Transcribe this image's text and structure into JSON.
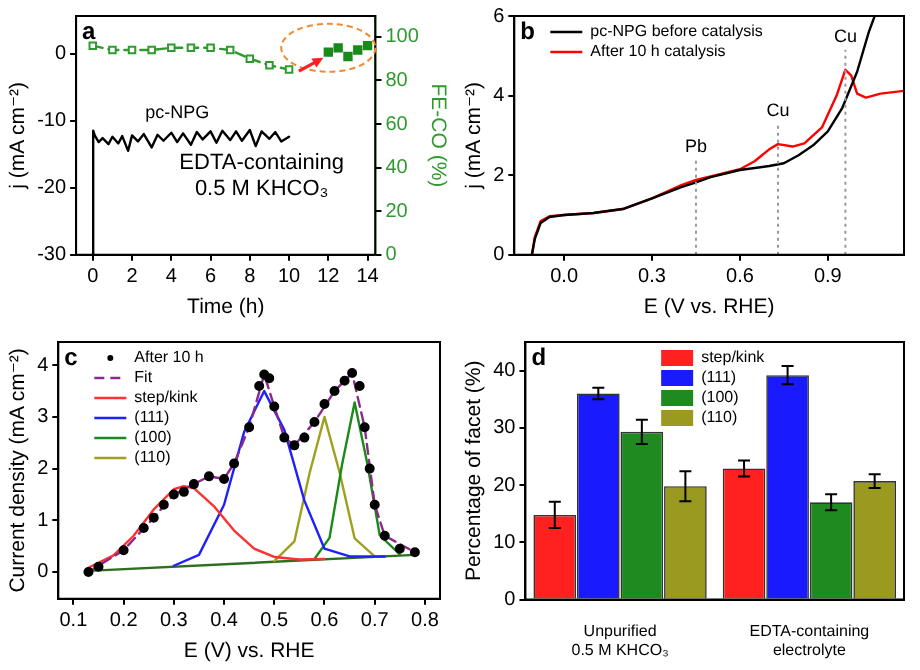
{
  "chart_data": [
    {
      "type": "line",
      "title": "a",
      "xlabel": "Time (h)",
      "ylabel": "j (mA cm⁻²)",
      "y2label": "FE-CO (%)",
      "xlim": [
        -0.85,
        14.4
      ],
      "xticks": [
        0,
        2,
        4,
        6,
        8,
        10,
        12,
        14
      ],
      "ylim": [
        -30,
        5.6
      ],
      "yticks": [
        -30,
        -20,
        -10,
        0
      ],
      "y2lim": [
        0,
        109.6
      ],
      "y2ticks": [
        0,
        20,
        40,
        60,
        80,
        100
      ],
      "series": [
        {
          "type": "line",
          "name": "pc-NPG",
          "color": "#000000",
          "x": [
            0,
            0.02,
            0.1,
            0.3,
            0.5,
            0.8,
            1.0,
            1.3,
            1.5,
            1.8,
            2.0,
            2.3,
            2.6,
            3.0,
            3.3,
            3.6,
            4.0,
            4.3,
            4.6,
            5.0,
            5.3,
            5.6,
            6.0,
            6.3,
            6.6,
            7.0,
            7.3,
            7.6,
            8.0,
            8.3,
            8.6,
            9.0,
            9.3,
            9.6,
            10.0
          ],
          "values": [
            -30,
            -11.5,
            -12.2,
            -13.2,
            -12.6,
            -13.5,
            -12.4,
            -13.4,
            -12.3,
            -14.5,
            -12.2,
            -13.1,
            -12.0,
            -14.0,
            -12.1,
            -13.0,
            -11.8,
            -13.2,
            -11.9,
            -13.6,
            -11.7,
            -12.8,
            -11.6,
            -13.3,
            -11.5,
            -12.9,
            -11.6,
            -13.0,
            -11.4,
            -13.8,
            -11.6,
            -12.7,
            -11.7,
            -13.1,
            -12.4
          ]
        },
        {
          "type": "line",
          "axis": "y2",
          "color": "#2f9a2f",
          "marker": "square",
          "line_style": "dashed",
          "x": [
            0,
            1,
            2,
            3,
            4,
            5,
            6,
            7,
            8,
            9,
            10
          ],
          "values": [
            96,
            94,
            94,
            94,
            95,
            95,
            95,
            94,
            90,
            87,
            85
          ]
        },
        {
          "type": "scatter",
          "axis": "y2",
          "color": "#1a8a1a",
          "marker": "square",
          "x": [
            12,
            12.5,
            13,
            13.5,
            14
          ],
          "values": [
            93,
            95,
            91,
            94,
            96
          ]
        }
      ],
      "annotations": [
        "EDTA-containing\n0.5 M KHCO₃"
      ]
    },
    {
      "type": "line",
      "title": "b",
      "xlabel": "E (V vs. RHE)",
      "ylabel": "j (mA cm⁻²)",
      "xlim": [
        -0.17,
        1.16
      ],
      "xticks": [
        {
          "value": 0,
          "label": "0.0"
        },
        {
          "value": 0.3,
          "label": "0.3"
        },
        {
          "value": 0.6,
          "label": "0.6"
        },
        {
          "value": 0.9,
          "label": "0.9"
        }
      ],
      "ylim": [
        0,
        6
      ],
      "yticks": [
        0,
        2,
        4,
        6
      ],
      "legend": "top left",
      "series": [
        {
          "name": "pc-NPG before catalysis",
          "color": "#000000",
          "x": [
            -0.11,
            -0.1,
            -0.08,
            -0.05,
            0,
            0.1,
            0.2,
            0.3,
            0.4,
            0.45,
            0.5,
            0.6,
            0.7,
            0.75,
            0.8,
            0.85,
            0.9,
            0.95,
            1.0,
            1.04,
            1.06
          ],
          "values": [
            0,
            0.4,
            0.8,
            0.95,
            1.0,
            1.05,
            1.15,
            1.42,
            1.7,
            1.82,
            1.95,
            2.13,
            2.23,
            2.3,
            2.5,
            2.75,
            3.1,
            3.7,
            4.6,
            5.6,
            6.0
          ]
        },
        {
          "name": "After 10 h catalysis",
          "color": "#ff0000",
          "x": [
            -0.11,
            -0.1,
            -0.08,
            -0.05,
            0,
            0.1,
            0.2,
            0.3,
            0.4,
            0.45,
            0.5,
            0.6,
            0.65,
            0.7,
            0.73,
            0.78,
            0.82,
            0.88,
            0.93,
            0.96,
            0.98,
            1.0,
            1.03,
            1.08,
            1.16
          ],
          "values": [
            0,
            0.45,
            0.85,
            0.97,
            1.0,
            1.05,
            1.15,
            1.42,
            1.75,
            1.88,
            1.97,
            2.15,
            2.35,
            2.65,
            2.78,
            2.72,
            2.8,
            3.2,
            4.0,
            4.65,
            4.5,
            4.05,
            3.95,
            4.05,
            4.12
          ]
        }
      ],
      "ref_lines": [
        {
          "axis": "x",
          "value": 0.45,
          "label": "Pb",
          "color": "#999999",
          "line_style": "dotted"
        },
        {
          "axis": "x",
          "value": 0.73,
          "label": "Cu",
          "color": "#999999",
          "line_style": "dotted"
        },
        {
          "axis": "x",
          "value": 0.96,
          "label": "Cu",
          "color": "#999999",
          "line_style": "dotted"
        }
      ]
    },
    {
      "type": "line",
      "title": "c",
      "xlabel": "E (V) vs. RHE",
      "ylabel": "Current density (mA cm⁻²)",
      "xlim": [
        0.07,
        0.83
      ],
      "xticks": [
        0.1,
        0.2,
        0.3,
        0.4,
        0.5,
        0.6,
        0.7,
        0.8
      ],
      "ylim": [
        -0.52,
        4.45
      ],
      "yticks": [
        0,
        1,
        2,
        3,
        4
      ],
      "legend": "top left",
      "series": [
        {
          "type": "scatter",
          "name": "After 10 h",
          "color": "#000000",
          "marker": "circle",
          "x": [
            0.13,
            0.15,
            0.2,
            0.24,
            0.26,
            0.28,
            0.3,
            0.32,
            0.34,
            0.37,
            0.4,
            0.42,
            0.45,
            0.47,
            0.48,
            0.49,
            0.5,
            0.52,
            0.54,
            0.56,
            0.58,
            0.6,
            0.62,
            0.64,
            0.655,
            0.67,
            0.68,
            0.69,
            0.7,
            0.72,
            0.75,
            0.78
          ],
          "values": [
            0,
            0.1,
            0.42,
            0.85,
            1.05,
            1.3,
            1.5,
            1.55,
            1.7,
            1.85,
            1.8,
            2.1,
            2.8,
            3.6,
            3.82,
            3.75,
            3.2,
            2.6,
            2.45,
            2.6,
            2.9,
            3.25,
            3.5,
            3.7,
            3.85,
            3.6,
            2.8,
            2.0,
            1.3,
            0.7,
            0.45,
            0.38
          ]
        },
        {
          "name": "Fit",
          "color": "#8b2a8b",
          "line_style": "dashed",
          "x": [
            0.13,
            0.2,
            0.26,
            0.3,
            0.34,
            0.37,
            0.4,
            0.42,
            0.45,
            0.48,
            0.5,
            0.52,
            0.54,
            0.58,
            0.62,
            0.655,
            0.68,
            0.7,
            0.72,
            0.78
          ],
          "values": [
            0,
            0.42,
            1.05,
            1.5,
            1.7,
            1.85,
            1.8,
            2.1,
            2.8,
            3.82,
            3.2,
            2.6,
            2.45,
            2.9,
            3.5,
            3.85,
            2.8,
            1.3,
            0.7,
            0.38
          ]
        },
        {
          "name": "step/kink",
          "color": "#ff3030",
          "x": [
            0.13,
            0.18,
            0.22,
            0.26,
            0.3,
            0.32,
            0.34,
            0.38,
            0.42,
            0.46,
            0.5,
            0.55,
            0.6
          ],
          "values": [
            0.08,
            0.32,
            0.7,
            1.21,
            1.6,
            1.66,
            1.62,
            1.27,
            0.8,
            0.45,
            0.29,
            0.24,
            0.25
          ]
        },
        {
          "name": "(111)",
          "color": "#2020ff",
          "x": [
            0.3,
            0.35,
            0.4,
            0.44,
            0.48,
            0.52,
            0.56,
            0.6,
            0.65,
            0.72
          ],
          "values": [
            0.12,
            0.33,
            1.3,
            2.71,
            3.5,
            2.75,
            1.38,
            0.45,
            0.3,
            0.3
          ]
        },
        {
          "name": "(100)",
          "color": "#1a8a1a",
          "x": [
            0.58,
            0.61,
            0.635,
            0.66,
            0.685,
            0.71,
            0.75
          ],
          "values": [
            0.25,
            0.66,
            2.08,
            3.28,
            2.11,
            0.71,
            0.34
          ]
        },
        {
          "name": "(110)",
          "color": "#a0a020",
          "x": [
            0.5,
            0.54,
            0.57,
            0.6,
            0.63,
            0.66,
            0.7
          ],
          "values": [
            0.21,
            0.59,
            1.9,
            3.0,
            1.93,
            0.65,
            0.3
          ]
        },
        {
          "color": "#2e6e1e",
          "x": [
            0.13,
            0.78
          ],
          "values": [
            0.02,
            0.33
          ]
        }
      ]
    },
    {
      "type": "bar",
      "title": "d",
      "ylabel": "Percentage of facet (%)",
      "categories": [
        "Unpurified 0.5 M KHCO₃",
        "EDTA-containing electrolyte"
      ],
      "ylim": [
        0,
        45
      ],
      "yticks": [
        0,
        10,
        20,
        30,
        40
      ],
      "legend": "top",
      "series": [
        {
          "name": "step/kink",
          "color": "#ff2020",
          "values": [
            14.8,
            22.9
          ],
          "errors": [
            2.3,
            1.4
          ]
        },
        {
          "name": "(111)",
          "color": "#1a1aff",
          "values": [
            36,
            39.2
          ],
          "errors": [
            1.0,
            1.6
          ]
        },
        {
          "name": "(100)",
          "color": "#1f8a1f",
          "values": [
            29.3,
            17
          ],
          "errors": [
            2.1,
            1.4
          ]
        },
        {
          "name": "(110)",
          "color": "#9a9a20",
          "values": [
            19.8,
            20.7
          ],
          "errors": [
            2.6,
            1.2
          ]
        }
      ]
    }
  ]
}
